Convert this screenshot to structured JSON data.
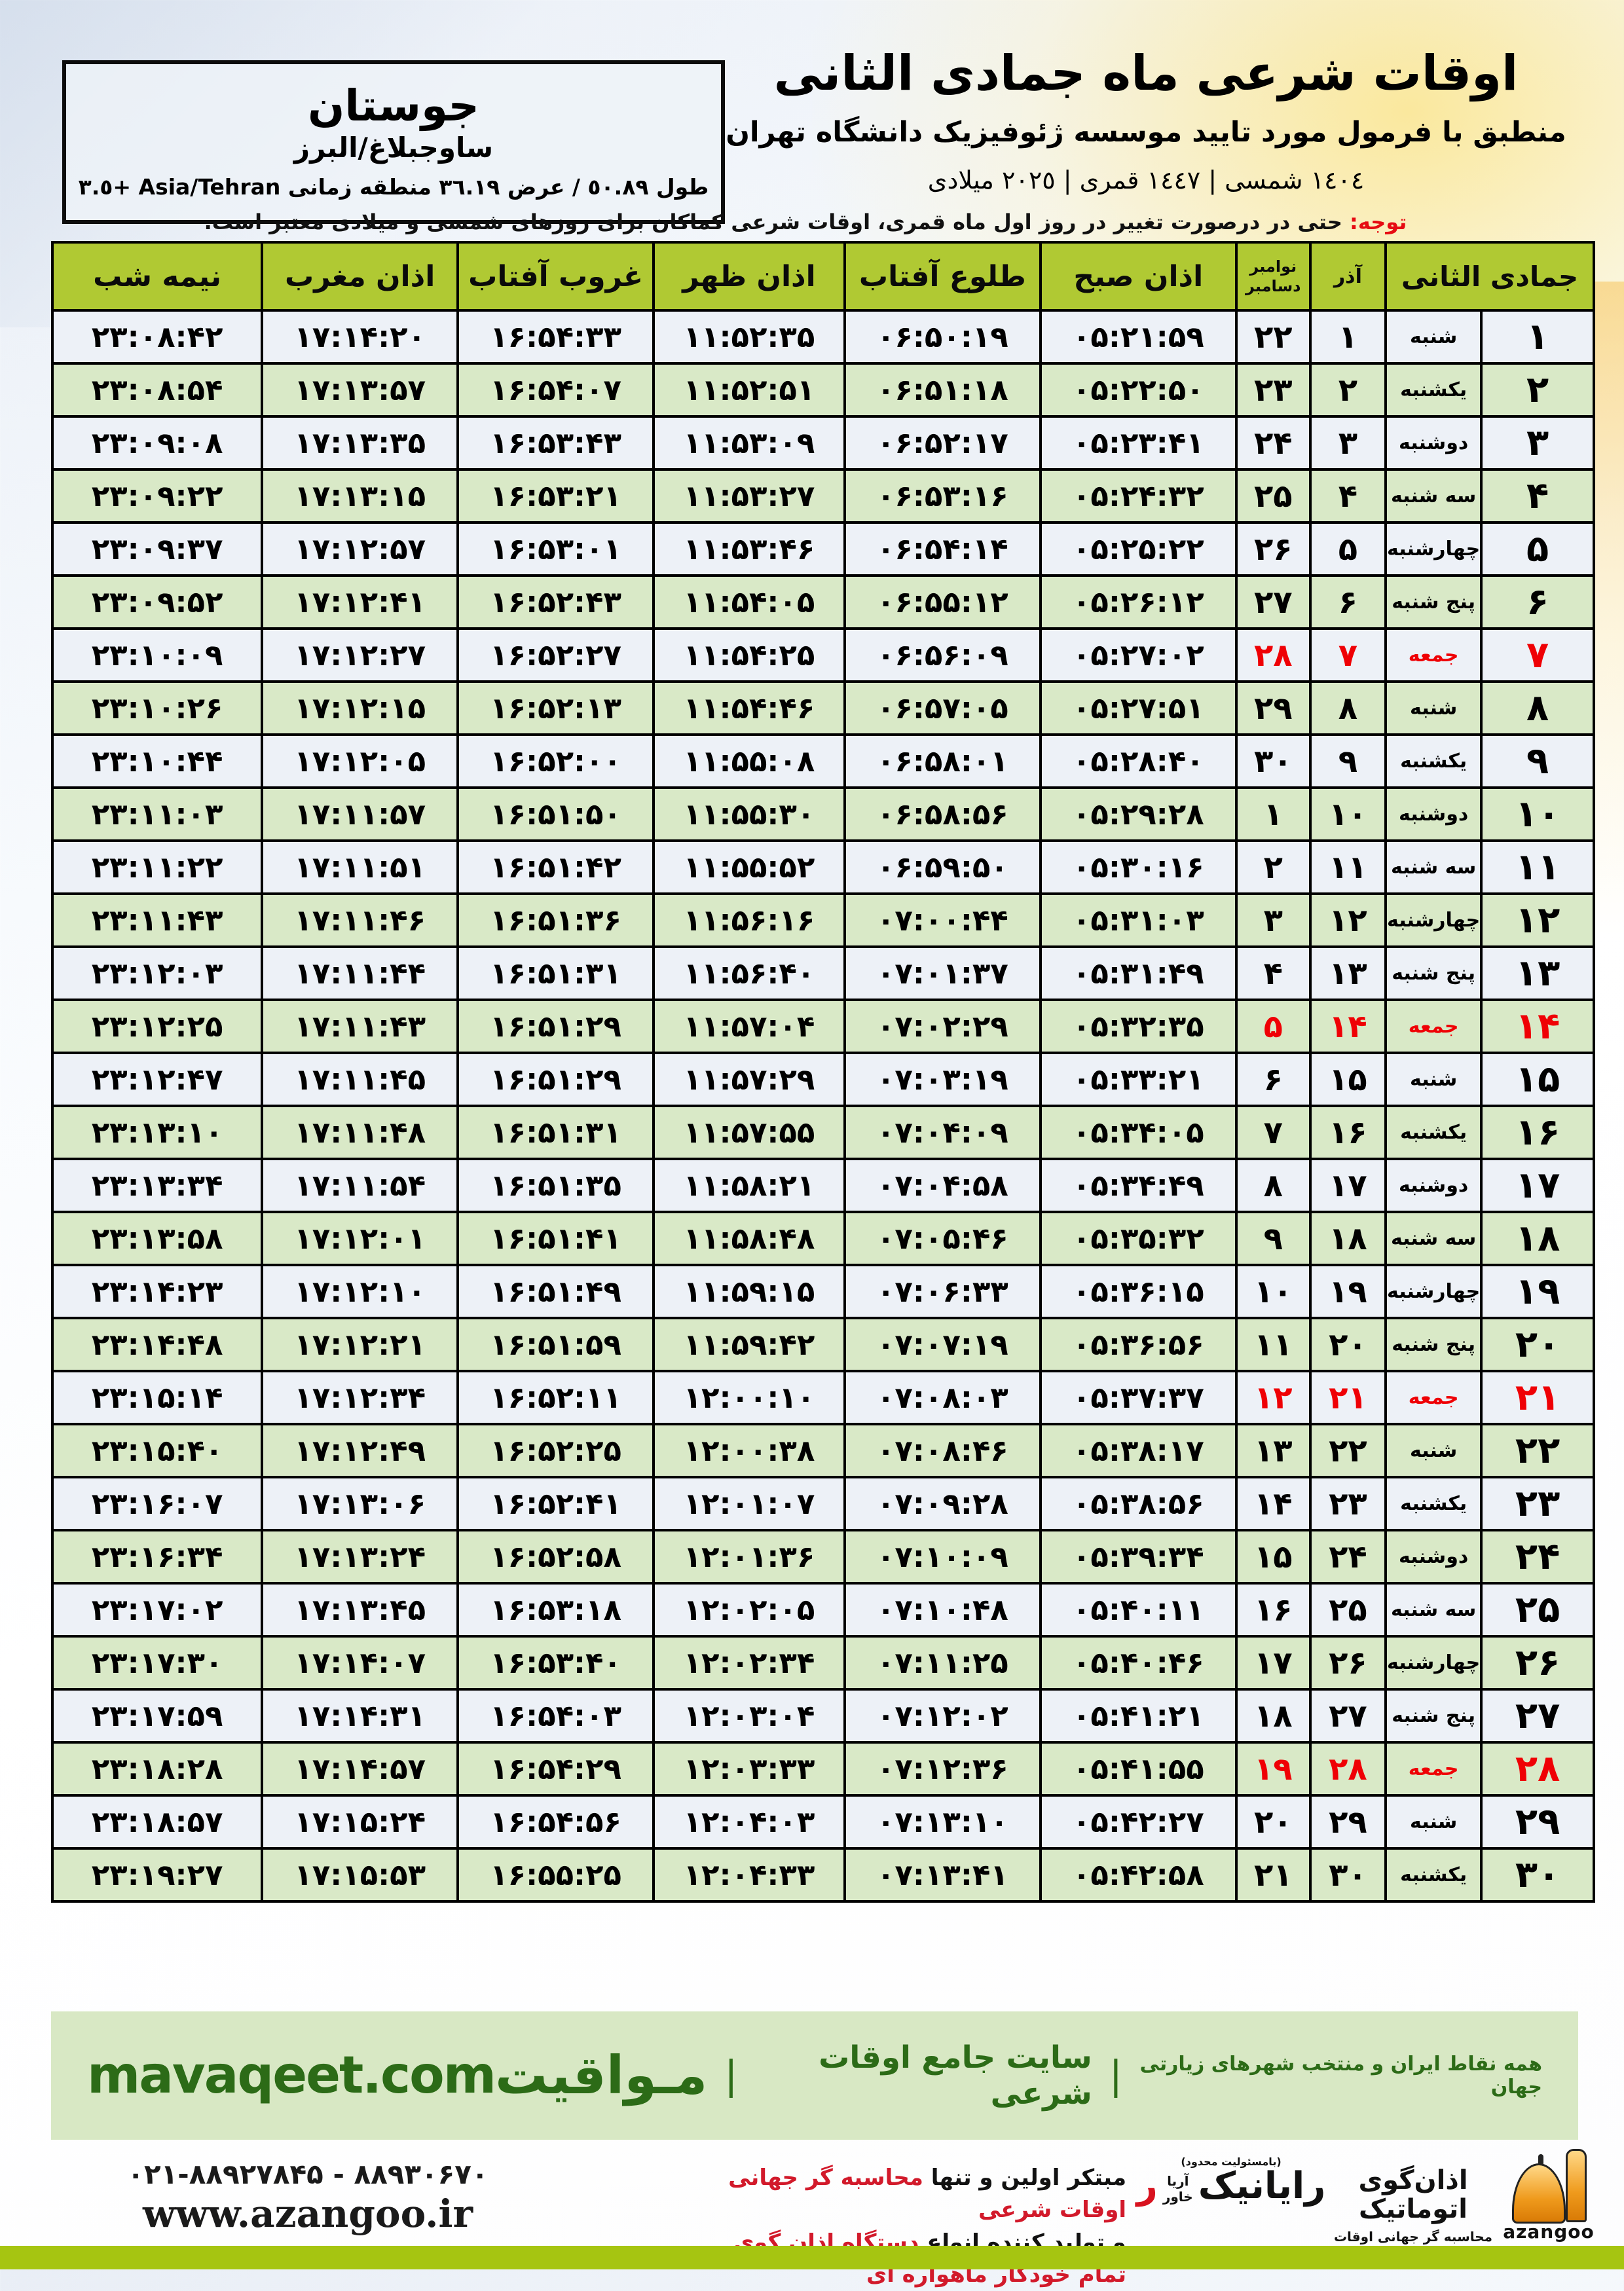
{
  "colors": {
    "header_green": "#b0c933",
    "row_light": "#edf1f7",
    "row_green": "#d9e9c7",
    "friday_red": "#ef0005",
    "footer_green_bg": "#d8e8c4",
    "footer_green_text": "#2c6b17",
    "bottom_strip": "#a6c511"
  },
  "header": {
    "title": "اوقات شرعی ماه جمادی الثانی",
    "subtitle": "منطبق با فرمول مورد تایید موسسه ژئوفیزیک دانشگاه تهران",
    "years": "١٤٠٤ شمسی | ١٤٤٧ قمری | ٢٠٢٥ میلادی"
  },
  "location": {
    "city": "جوستان",
    "region": "ساوجبلاغ/البرز",
    "geo": "طول ٥٠.٨٩ / عرض ٣٦.١٩ منطقه زمانی Asia/Tehran +٣.٥"
  },
  "notice": {
    "label": "توجه:",
    "text": " حتی در درصورت تغییر در روز اول ماه قمری، اوقات شرعی کماکان برای روزهای شمسی و میلادی معتبر است."
  },
  "table": {
    "headers": {
      "month": "جمادی الثانی",
      "azar": "آذر",
      "greg_top": "نوامبر",
      "greg_bottom": "دسامبر",
      "sobh": "اذان صبح",
      "tolu": "طلوع آفتاب",
      "zohr": "اذان ظهر",
      "ghorub": "غروب آفتاب",
      "maghreb": "اذان مغرب",
      "nimeshab": "نیمه شب"
    },
    "rows": [
      {
        "day": "۱",
        "weekday": "شنبه",
        "azar": "۱",
        "greg": "۲۲",
        "sobh": "۰۵:۲۱:۵۹",
        "tolu": "۰۶:۵۰:۱۹",
        "zohr": "۱۱:۵۲:۳۵",
        "ghorub": "۱۶:۵۴:۳۳",
        "maghreb": "۱۷:۱۴:۲۰",
        "nimeshab": "۲۳:۰۸:۴۲",
        "friday": false
      },
      {
        "day": "۲",
        "weekday": "یکشنبه",
        "azar": "۲",
        "greg": "۲۳",
        "sobh": "۰۵:۲۲:۵۰",
        "tolu": "۰۶:۵۱:۱۸",
        "zohr": "۱۱:۵۲:۵۱",
        "ghorub": "۱۶:۵۴:۰۷",
        "maghreb": "۱۷:۱۳:۵۷",
        "nimeshab": "۲۳:۰۸:۵۴",
        "friday": false
      },
      {
        "day": "۳",
        "weekday": "دوشنبه",
        "azar": "۳",
        "greg": "۲۴",
        "sobh": "۰۵:۲۳:۴۱",
        "tolu": "۰۶:۵۲:۱۷",
        "zohr": "۱۱:۵۳:۰۹",
        "ghorub": "۱۶:۵۳:۴۳",
        "maghreb": "۱۷:۱۳:۳۵",
        "nimeshab": "۲۳:۰۹:۰۸",
        "friday": false
      },
      {
        "day": "۴",
        "weekday": "سه شنبه",
        "azar": "۴",
        "greg": "۲۵",
        "sobh": "۰۵:۲۴:۳۲",
        "tolu": "۰۶:۵۳:۱۶",
        "zohr": "۱۱:۵۳:۲۷",
        "ghorub": "۱۶:۵۳:۲۱",
        "maghreb": "۱۷:۱۳:۱۵",
        "nimeshab": "۲۳:۰۹:۲۲",
        "friday": false
      },
      {
        "day": "۵",
        "weekday": "چهارشنبه",
        "azar": "۵",
        "greg": "۲۶",
        "sobh": "۰۵:۲۵:۲۲",
        "tolu": "۰۶:۵۴:۱۴",
        "zohr": "۱۱:۵۳:۴۶",
        "ghorub": "۱۶:۵۳:۰۱",
        "maghreb": "۱۷:۱۲:۵۷",
        "nimeshab": "۲۳:۰۹:۳۷",
        "friday": false
      },
      {
        "day": "۶",
        "weekday": "پنج شنبه",
        "azar": "۶",
        "greg": "۲۷",
        "sobh": "۰۵:۲۶:۱۲",
        "tolu": "۰۶:۵۵:۱۲",
        "zohr": "۱۱:۵۴:۰۵",
        "ghorub": "۱۶:۵۲:۴۳",
        "maghreb": "۱۷:۱۲:۴۱",
        "nimeshab": "۲۳:۰۹:۵۲",
        "friday": false
      },
      {
        "day": "۷",
        "weekday": "جمعه",
        "azar": "۷",
        "greg": "۲۸",
        "sobh": "۰۵:۲۷:۰۲",
        "tolu": "۰۶:۵۶:۰۹",
        "zohr": "۱۱:۵۴:۲۵",
        "ghorub": "۱۶:۵۲:۲۷",
        "maghreb": "۱۷:۱۲:۲۷",
        "nimeshab": "۲۳:۱۰:۰۹",
        "friday": true
      },
      {
        "day": "۸",
        "weekday": "شنبه",
        "azar": "۸",
        "greg": "۲۹",
        "sobh": "۰۵:۲۷:۵۱",
        "tolu": "۰۶:۵۷:۰۵",
        "zohr": "۱۱:۵۴:۴۶",
        "ghorub": "۱۶:۵۲:۱۳",
        "maghreb": "۱۷:۱۲:۱۵",
        "nimeshab": "۲۳:۱۰:۲۶",
        "friday": false
      },
      {
        "day": "۹",
        "weekday": "یکشنبه",
        "azar": "۹",
        "greg": "۳۰",
        "sobh": "۰۵:۲۸:۴۰",
        "tolu": "۰۶:۵۸:۰۱",
        "zohr": "۱۱:۵۵:۰۸",
        "ghorub": "۱۶:۵۲:۰۰",
        "maghreb": "۱۷:۱۲:۰۵",
        "nimeshab": "۲۳:۱۰:۴۴",
        "friday": false
      },
      {
        "day": "۱۰",
        "weekday": "دوشنبه",
        "azar": "۱۰",
        "greg": "۱",
        "sobh": "۰۵:۲۹:۲۸",
        "tolu": "۰۶:۵۸:۵۶",
        "zohr": "۱۱:۵۵:۳۰",
        "ghorub": "۱۶:۵۱:۵۰",
        "maghreb": "۱۷:۱۱:۵۷",
        "nimeshab": "۲۳:۱۱:۰۳",
        "friday": false
      },
      {
        "day": "۱۱",
        "weekday": "سه شنبه",
        "azar": "۱۱",
        "greg": "۲",
        "sobh": "۰۵:۳۰:۱۶",
        "tolu": "۰۶:۵۹:۵۰",
        "zohr": "۱۱:۵۵:۵۲",
        "ghorub": "۱۶:۵۱:۴۲",
        "maghreb": "۱۷:۱۱:۵۱",
        "nimeshab": "۲۳:۱۱:۲۲",
        "friday": false
      },
      {
        "day": "۱۲",
        "weekday": "چهارشنبه",
        "azar": "۱۲",
        "greg": "۳",
        "sobh": "۰۵:۳۱:۰۳",
        "tolu": "۰۷:۰۰:۴۴",
        "zohr": "۱۱:۵۶:۱۶",
        "ghorub": "۱۶:۵۱:۳۶",
        "maghreb": "۱۷:۱۱:۴۶",
        "nimeshab": "۲۳:۱۱:۴۳",
        "friday": false
      },
      {
        "day": "۱۳",
        "weekday": "پنج شنبه",
        "azar": "۱۳",
        "greg": "۴",
        "sobh": "۰۵:۳۱:۴۹",
        "tolu": "۰۷:۰۱:۳۷",
        "zohr": "۱۱:۵۶:۴۰",
        "ghorub": "۱۶:۵۱:۳۱",
        "maghreb": "۱۷:۱۱:۴۴",
        "nimeshab": "۲۳:۱۲:۰۳",
        "friday": false
      },
      {
        "day": "۱۴",
        "weekday": "جمعه",
        "azar": "۱۴",
        "greg": "۵",
        "sobh": "۰۵:۳۲:۳۵",
        "tolu": "۰۷:۰۲:۲۹",
        "zohr": "۱۱:۵۷:۰۴",
        "ghorub": "۱۶:۵۱:۲۹",
        "maghreb": "۱۷:۱۱:۴۳",
        "nimeshab": "۲۳:۱۲:۲۵",
        "friday": true
      },
      {
        "day": "۱۵",
        "weekday": "شنبه",
        "azar": "۱۵",
        "greg": "۶",
        "sobh": "۰۵:۳۳:۲۱",
        "tolu": "۰۷:۰۳:۱۹",
        "zohr": "۱۱:۵۷:۲۹",
        "ghorub": "۱۶:۵۱:۲۹",
        "maghreb": "۱۷:۱۱:۴۵",
        "nimeshab": "۲۳:۱۲:۴۷",
        "friday": false
      },
      {
        "day": "۱۶",
        "weekday": "یکشنبه",
        "azar": "۱۶",
        "greg": "۷",
        "sobh": "۰۵:۳۴:۰۵",
        "tolu": "۰۷:۰۴:۰۹",
        "zohr": "۱۱:۵۷:۵۵",
        "ghorub": "۱۶:۵۱:۳۱",
        "maghreb": "۱۷:۱۱:۴۸",
        "nimeshab": "۲۳:۱۳:۱۰",
        "friday": false
      },
      {
        "day": "۱۷",
        "weekday": "دوشنبه",
        "azar": "۱۷",
        "greg": "۸",
        "sobh": "۰۵:۳۴:۴۹",
        "tolu": "۰۷:۰۴:۵۸",
        "zohr": "۱۱:۵۸:۲۱",
        "ghorub": "۱۶:۵۱:۳۵",
        "maghreb": "۱۷:۱۱:۵۴",
        "nimeshab": "۲۳:۱۳:۳۴",
        "friday": false
      },
      {
        "day": "۱۸",
        "weekday": "سه شنبه",
        "azar": "۱۸",
        "greg": "۹",
        "sobh": "۰۵:۳۵:۳۲",
        "tolu": "۰۷:۰۵:۴۶",
        "zohr": "۱۱:۵۸:۴۸",
        "ghorub": "۱۶:۵۱:۴۱",
        "maghreb": "۱۷:۱۲:۰۱",
        "nimeshab": "۲۳:۱۳:۵۸",
        "friday": false
      },
      {
        "day": "۱۹",
        "weekday": "چهارشنبه",
        "azar": "۱۹",
        "greg": "۱۰",
        "sobh": "۰۵:۳۶:۱۵",
        "tolu": "۰۷:۰۶:۳۳",
        "zohr": "۱۱:۵۹:۱۵",
        "ghorub": "۱۶:۵۱:۴۹",
        "maghreb": "۱۷:۱۲:۱۰",
        "nimeshab": "۲۳:۱۴:۲۳",
        "friday": false
      },
      {
        "day": "۲۰",
        "weekday": "پنج شنبه",
        "azar": "۲۰",
        "greg": "۱۱",
        "sobh": "۰۵:۳۶:۵۶",
        "tolu": "۰۷:۰۷:۱۹",
        "zohr": "۱۱:۵۹:۴۲",
        "ghorub": "۱۶:۵۱:۵۹",
        "maghreb": "۱۷:۱۲:۲۱",
        "nimeshab": "۲۳:۱۴:۴۸",
        "friday": false
      },
      {
        "day": "۲۱",
        "weekday": "جمعه",
        "azar": "۲۱",
        "greg": "۱۲",
        "sobh": "۰۵:۳۷:۳۷",
        "tolu": "۰۷:۰۸:۰۳",
        "zohr": "۱۲:۰۰:۱۰",
        "ghorub": "۱۶:۵۲:۱۱",
        "maghreb": "۱۷:۱۲:۳۴",
        "nimeshab": "۲۳:۱۵:۱۴",
        "friday": true
      },
      {
        "day": "۲۲",
        "weekday": "شنبه",
        "azar": "۲۲",
        "greg": "۱۳",
        "sobh": "۰۵:۳۸:۱۷",
        "tolu": "۰۷:۰۸:۴۶",
        "zohr": "۱۲:۰۰:۳۸",
        "ghorub": "۱۶:۵۲:۲۵",
        "maghreb": "۱۷:۱۲:۴۹",
        "nimeshab": "۲۳:۱۵:۴۰",
        "friday": false
      },
      {
        "day": "۲۳",
        "weekday": "یکشنبه",
        "azar": "۲۳",
        "greg": "۱۴",
        "sobh": "۰۵:۳۸:۵۶",
        "tolu": "۰۷:۰۹:۲۸",
        "zohr": "۱۲:۰۱:۰۷",
        "ghorub": "۱۶:۵۲:۴۱",
        "maghreb": "۱۷:۱۳:۰۶",
        "nimeshab": "۲۳:۱۶:۰۷",
        "friday": false
      },
      {
        "day": "۲۴",
        "weekday": "دوشنبه",
        "azar": "۲۴",
        "greg": "۱۵",
        "sobh": "۰۵:۳۹:۳۴",
        "tolu": "۰۷:۱۰:۰۹",
        "zohr": "۱۲:۰۱:۳۶",
        "ghorub": "۱۶:۵۲:۵۸",
        "maghreb": "۱۷:۱۳:۲۴",
        "nimeshab": "۲۳:۱۶:۳۴",
        "friday": false
      },
      {
        "day": "۲۵",
        "weekday": "سه شنبه",
        "azar": "۲۵",
        "greg": "۱۶",
        "sobh": "۰۵:۴۰:۱۱",
        "tolu": "۰۷:۱۰:۴۸",
        "zohr": "۱۲:۰۲:۰۵",
        "ghorub": "۱۶:۵۳:۱۸",
        "maghreb": "۱۷:۱۳:۴۵",
        "nimeshab": "۲۳:۱۷:۰۲",
        "friday": false
      },
      {
        "day": "۲۶",
        "weekday": "چهارشنبه",
        "azar": "۲۶",
        "greg": "۱۷",
        "sobh": "۰۵:۴۰:۴۶",
        "tolu": "۰۷:۱۱:۲۵",
        "zohr": "۱۲:۰۲:۳۴",
        "ghorub": "۱۶:۵۳:۴۰",
        "maghreb": "۱۷:۱۴:۰۷",
        "nimeshab": "۲۳:۱۷:۳۰",
        "friday": false
      },
      {
        "day": "۲۷",
        "weekday": "پنج شنبه",
        "azar": "۲۷",
        "greg": "۱۸",
        "sobh": "۰۵:۴۱:۲۱",
        "tolu": "۰۷:۱۲:۰۲",
        "zohr": "۱۲:۰۳:۰۴",
        "ghorub": "۱۶:۵۴:۰۳",
        "maghreb": "۱۷:۱۴:۳۱",
        "nimeshab": "۲۳:۱۷:۵۹",
        "friday": false
      },
      {
        "day": "۲۸",
        "weekday": "جمعه",
        "azar": "۲۸",
        "greg": "۱۹",
        "sobh": "۰۵:۴۱:۵۵",
        "tolu": "۰۷:۱۲:۳۶",
        "zohr": "۱۲:۰۳:۳۳",
        "ghorub": "۱۶:۵۴:۲۹",
        "maghreb": "۱۷:۱۴:۵۷",
        "nimeshab": "۲۳:۱۸:۲۸",
        "friday": true
      },
      {
        "day": "۲۹",
        "weekday": "شنبه",
        "azar": "۲۹",
        "greg": "۲۰",
        "sobh": "۰۵:۴۲:۲۷",
        "tolu": "۰۷:۱۳:۱۰",
        "zohr": "۱۲:۰۴:۰۳",
        "ghorub": "۱۶:۵۴:۵۶",
        "maghreb": "۱۷:۱۵:۲۴",
        "nimeshab": "۲۳:۱۸:۵۷",
        "friday": false
      },
      {
        "day": "۳۰",
        "weekday": "یکشنبه",
        "azar": "۳۰",
        "greg": "۲۱",
        "sobh": "۰۵:۴۲:۵۸",
        "tolu": "۰۷:۱۳:۴۱",
        "zohr": "۱۲:۰۴:۳۳",
        "ghorub": "۱۶:۵۵:۲۵",
        "maghreb": "۱۷:۱۵:۵۳",
        "nimeshab": "۲۳:۱۹:۲۷",
        "friday": false
      }
    ]
  },
  "footer": {
    "site_en": "mavaqeet.com",
    "brand": "مـواقیت",
    "sep": "|",
    "tagline1": "سایت جامع اوقات شرعی",
    "tagline2": "همه نقاط ایران و منتخب شهرهای زیارتی جهان",
    "phone": "۰۲۱-۸۸۹۲۷۸۴۵ - ۸۸۹۳۰۶۷۰",
    "site_ir": "www.azangoo.ir",
    "maker_line1_black": "مبتکر اولین و تنها ",
    "maker_line1_red": "محاسبه گر جهانی اوقات شرعی",
    "maker_line2_black": "و تولید کننده انواع ",
    "maker_line2_red": "دستگاه اذان گوی تمام خودکار ماهواره ای",
    "rayanik_note": "(بامسئولیت محدود)",
    "rayanik_name": "رایانیک",
    "rayanik_sub1": "آریا",
    "rayanik_sub2": "خاور",
    "rayanik_accent": "ر",
    "azangoo_fa": "اذان‌گوی اتوماتیک",
    "azangoo_tagline": "محاسبه گر جهانی اوقات شرعی",
    "azangoo_en": "azangoo"
  }
}
